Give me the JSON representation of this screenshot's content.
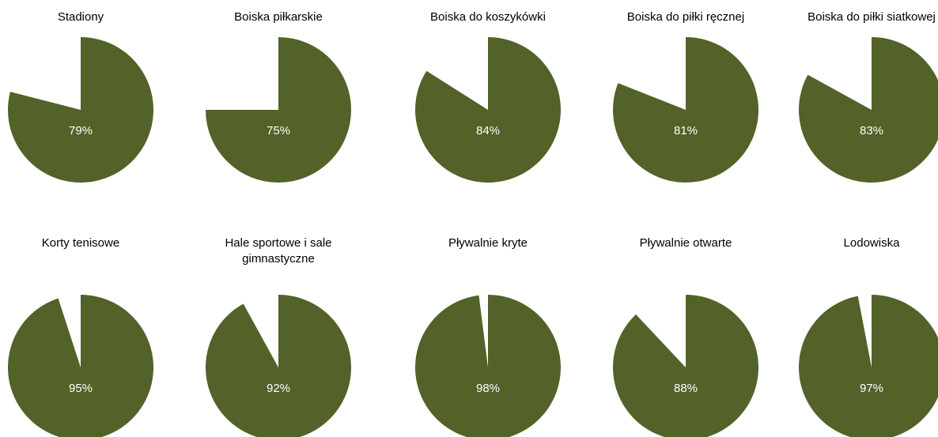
{
  "chart_data": [
    {
      "type": "pie",
      "title": "Stadiony",
      "values": [
        79
      ],
      "value_labels": [
        "79%"
      ],
      "color": "#526229"
    },
    {
      "type": "pie",
      "title": "Boiska piłkarskie",
      "values": [
        75
      ],
      "value_labels": [
        "75%"
      ],
      "color": "#526229"
    },
    {
      "type": "pie",
      "title": "Boiska do koszykówki",
      "values": [
        84
      ],
      "value_labels": [
        "84%"
      ],
      "color": "#526229"
    },
    {
      "type": "pie",
      "title": "Boiska do piłki ręcznej",
      "values": [
        81
      ],
      "value_labels": [
        "81%"
      ],
      "color": "#526229"
    },
    {
      "type": "pie",
      "title": "Boiska do piłki siatkowej",
      "values": [
        83
      ],
      "value_labels": [
        "83%"
      ],
      "color": "#526229"
    },
    {
      "type": "pie",
      "title": "Korty tenisowe",
      "values": [
        95
      ],
      "value_labels": [
        "95%"
      ],
      "color": "#526229"
    },
    {
      "type": "pie",
      "title": "Hale sportowe i sale gimnastyczne",
      "values": [
        92
      ],
      "value_labels": [
        "92%"
      ],
      "color": "#526229"
    },
    {
      "type": "pie",
      "title": "Pływalnie kryte",
      "values": [
        98
      ],
      "value_labels": [
        "98%"
      ],
      "color": "#526229"
    },
    {
      "type": "pie",
      "title": "Pływalnie otwarte",
      "values": [
        88
      ],
      "value_labels": [
        "88%"
      ],
      "color": "#526229"
    },
    {
      "type": "pie",
      "title": "Lodowiska",
      "values": [
        97
      ],
      "value_labels": [
        "97%"
      ],
      "color": "#526229"
    }
  ]
}
